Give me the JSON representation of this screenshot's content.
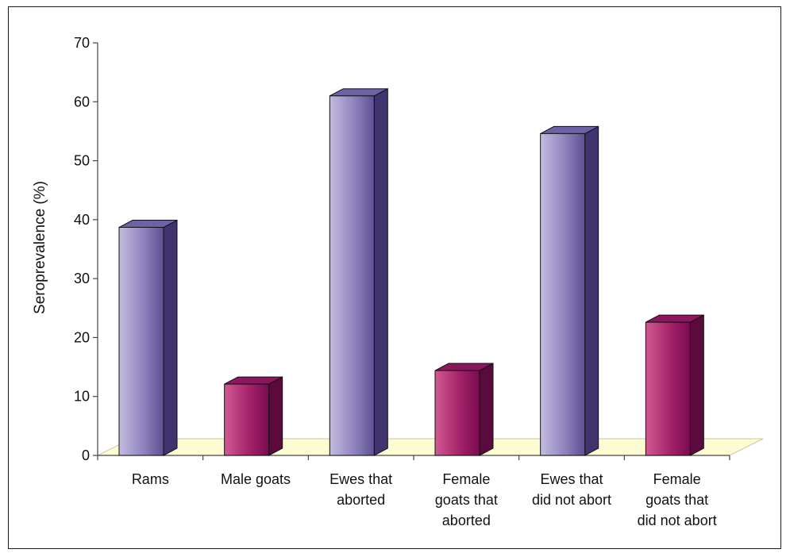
{
  "chart_data": {
    "type": "bar",
    "style": "3d-column",
    "title": "",
    "xlabel": "",
    "ylabel": "Seroprevalence (%)",
    "ylim": [
      0,
      70
    ],
    "yticks": [
      0,
      10,
      20,
      30,
      40,
      50,
      60,
      70
    ],
    "grid": false,
    "legend": "none",
    "categories": [
      [
        "Rams"
      ],
      [
        "Male goats"
      ],
      [
        "Ewes that",
        "aborted"
      ],
      [
        "Female",
        "goats that",
        "aborted"
      ],
      [
        "Ewes that",
        "did not abort"
      ],
      [
        "Female",
        "goats that",
        "did not abort"
      ]
    ],
    "values": [
      38.7,
      12.1,
      61,
      14.4,
      54.6,
      22.6
    ],
    "bar_colors": [
      "#9d92c6",
      "#b0306f",
      "#9d92c6",
      "#b0306f",
      "#9d92c6",
      "#b0306f"
    ],
    "floor_color": "#fdfbd2"
  }
}
